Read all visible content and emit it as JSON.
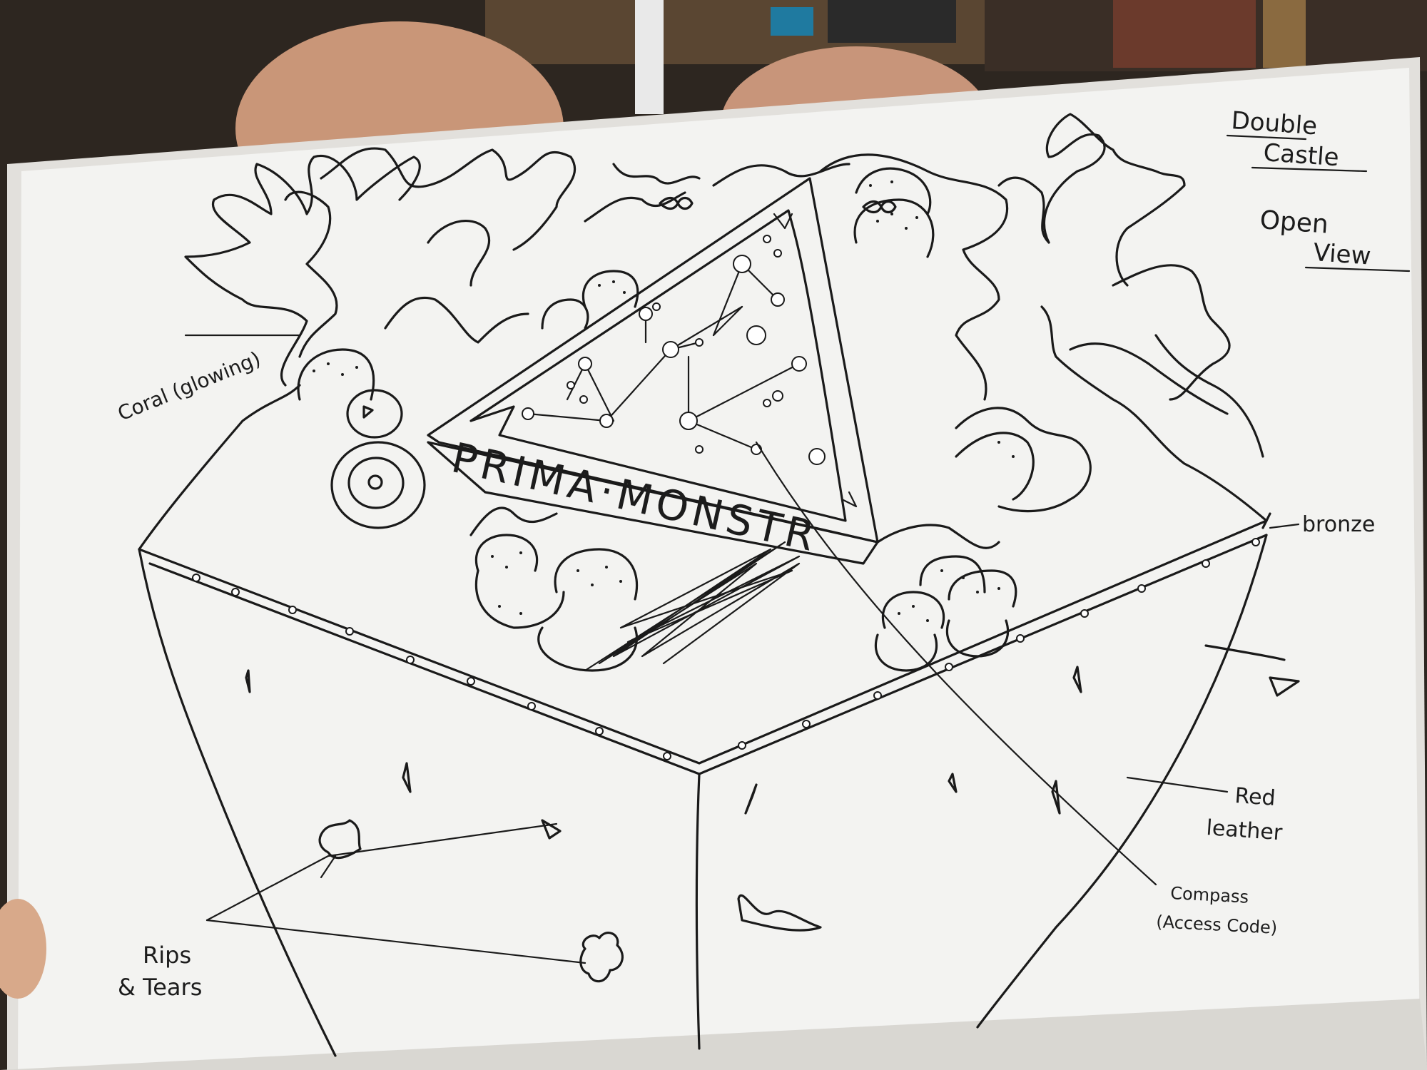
{
  "sketch": {
    "title_line1": "Double",
    "title_line2": "Castle",
    "view_line1": "Open",
    "view_line2": "View",
    "banner_text": "PRIMA·MONSTR"
  },
  "annotations": {
    "coral": "Coral (glowing)",
    "bronze": "bronze",
    "red_leather_1": "Red",
    "red_leather_2": "leather",
    "compass_1": "Compass",
    "compass_2": "(Access Code)",
    "rips_1": "Rips",
    "rips_2": "& Tears"
  },
  "colors": {
    "paper": "#f3f3f1",
    "ink": "#1a1a1a",
    "background": "#2a241f",
    "skin": "#d8a98a"
  }
}
